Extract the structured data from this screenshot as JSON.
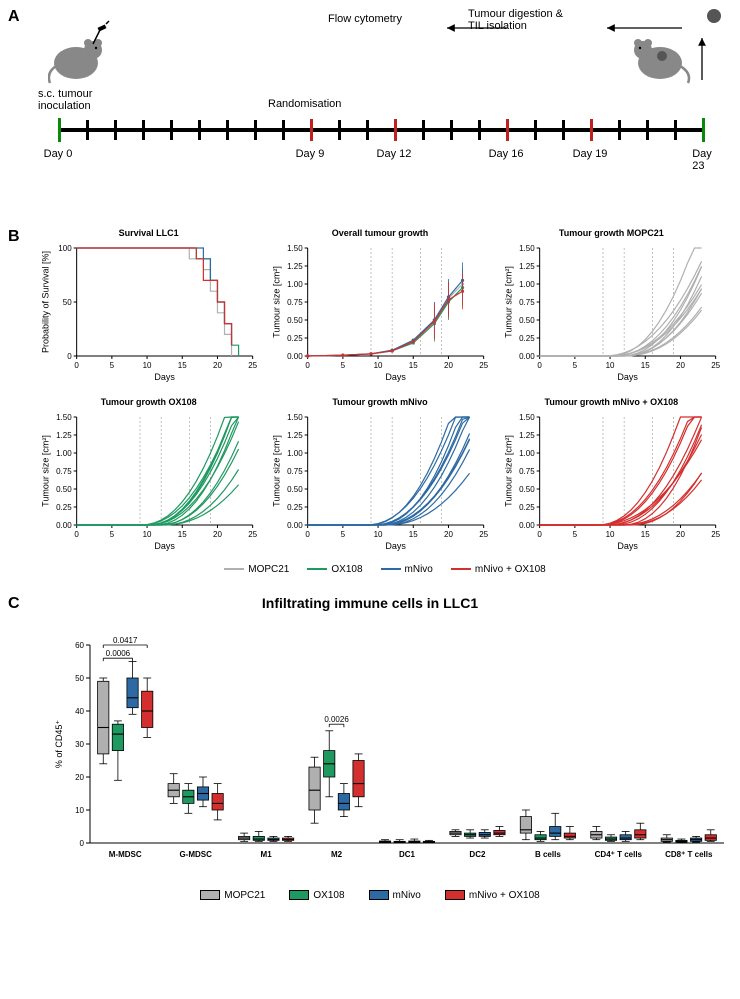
{
  "colors": {
    "mopc21": "#b0b0b0",
    "ox108": "#1e9960",
    "mnivo": "#2d6aa3",
    "mnivo_ox108": "#d32f2f",
    "black": "#000000",
    "green_tick": "#0a8a0a",
    "red_tick": "#c02020",
    "background": "#ffffff",
    "axis": "#000000"
  },
  "panel_a": {
    "label": "A",
    "inoculation_text": "s.c. tumour\ninoculation",
    "randomisation_text": "Randomisation",
    "flow_text": "Flow cytometry",
    "digestion_text": "Tumour digestion &\nTIL isolation",
    "timeline_ticks": [
      {
        "pos": 0,
        "type": "green",
        "label": "Day 0"
      },
      {
        "pos": 4.35,
        "type": "black"
      },
      {
        "pos": 8.7,
        "type": "black"
      },
      {
        "pos": 13.04,
        "type": "black"
      },
      {
        "pos": 17.39,
        "type": "black"
      },
      {
        "pos": 21.74,
        "type": "black"
      },
      {
        "pos": 26.09,
        "type": "black"
      },
      {
        "pos": 30.43,
        "type": "black"
      },
      {
        "pos": 34.78,
        "type": "black"
      },
      {
        "pos": 39.13,
        "type": "red",
        "label": "Day 9"
      },
      {
        "pos": 43.48,
        "type": "black"
      },
      {
        "pos": 47.83,
        "type": "black"
      },
      {
        "pos": 52.17,
        "type": "red",
        "label": "Day 12"
      },
      {
        "pos": 56.52,
        "type": "black"
      },
      {
        "pos": 60.87,
        "type": "black"
      },
      {
        "pos": 65.22,
        "type": "black"
      },
      {
        "pos": 69.57,
        "type": "red",
        "label": "Day 16"
      },
      {
        "pos": 73.91,
        "type": "black"
      },
      {
        "pos": 78.26,
        "type": "black"
      },
      {
        "pos": 82.61,
        "type": "red",
        "label": "Day 19"
      },
      {
        "pos": 86.96,
        "type": "black"
      },
      {
        "pos": 91.3,
        "type": "black"
      },
      {
        "pos": 95.65,
        "type": "black"
      },
      {
        "pos": 100,
        "type": "green",
        "label": "Day 23"
      }
    ]
  },
  "panel_b": {
    "label": "B",
    "x_axis": {
      "label": "Days",
      "min": 0,
      "max": 25,
      "step": 5
    },
    "survival": {
      "title": "Survival LLC1",
      "ylabel": "Probability of Survival [%]",
      "ylim": [
        0,
        100
      ],
      "ytick_step": 50,
      "series": {
        "mopc21": [
          [
            0,
            100
          ],
          [
            15,
            100
          ],
          [
            16,
            90
          ],
          [
            18,
            80
          ],
          [
            19,
            60
          ],
          [
            20,
            40
          ],
          [
            21,
            20
          ],
          [
            22,
            0
          ]
        ],
        "ox108": [
          [
            0,
            100
          ],
          [
            16,
            100
          ],
          [
            17,
            90
          ],
          [
            19,
            70
          ],
          [
            20,
            50
          ],
          [
            21,
            30
          ],
          [
            22,
            10
          ],
          [
            23,
            0
          ]
        ],
        "mnivo": [
          [
            0,
            100
          ],
          [
            16,
            100
          ],
          [
            18,
            90
          ],
          [
            19,
            70
          ],
          [
            20,
            50
          ],
          [
            21,
            30
          ],
          [
            22,
            10
          ]
        ],
        "mnivo_ox108": [
          [
            0,
            100
          ],
          [
            15,
            100
          ],
          [
            17,
            90
          ],
          [
            18,
            70
          ],
          [
            20,
            50
          ],
          [
            21,
            30
          ],
          [
            22,
            10
          ]
        ]
      }
    },
    "overall": {
      "title": "Overall tumour growth",
      "ylabel": "Tumour size [cm²]",
      "ylim": [
        0,
        1.5
      ],
      "ytick_step": 0.25,
      "vlines": [
        9,
        12,
        16,
        19
      ],
      "series": {
        "mopc21": [
          [
            0,
            0
          ],
          [
            5,
            0.01
          ],
          [
            9,
            0.03
          ],
          [
            12,
            0.08
          ],
          [
            15,
            0.2
          ],
          [
            18,
            0.5
          ],
          [
            20,
            0.8
          ],
          [
            22,
            1.0
          ]
        ],
        "ox108": [
          [
            0,
            0
          ],
          [
            5,
            0.01
          ],
          [
            9,
            0.03
          ],
          [
            12,
            0.07
          ],
          [
            15,
            0.18
          ],
          [
            18,
            0.45
          ],
          [
            20,
            0.75
          ],
          [
            22,
            0.95
          ]
        ],
        "mnivo": [
          [
            0,
            0
          ],
          [
            5,
            0.01
          ],
          [
            9,
            0.03
          ],
          [
            12,
            0.08
          ],
          [
            15,
            0.22
          ],
          [
            18,
            0.5
          ],
          [
            20,
            0.82
          ],
          [
            22,
            1.05
          ]
        ],
        "mnivo_ox108": [
          [
            0,
            0
          ],
          [
            5,
            0.01
          ],
          [
            9,
            0.03
          ],
          [
            12,
            0.07
          ],
          [
            15,
            0.2
          ],
          [
            18,
            0.48
          ],
          [
            20,
            0.78
          ],
          [
            22,
            0.9
          ]
        ]
      },
      "errorbars": {
        "x": [
          18,
          20,
          22
        ],
        "err": 0.25
      }
    },
    "individual": {
      "ylabel": "Tumour size [cm²]",
      "ylim": [
        0,
        1.5
      ],
      "ytick_step": 0.25,
      "vlines": [
        9,
        12,
        16,
        19
      ],
      "charts": [
        {
          "title": "Tumour growth MOPC21",
          "color": "mopc21",
          "n_lines": 11
        },
        {
          "title": "Tumour growth OX108",
          "color": "ox108",
          "n_lines": 11
        },
        {
          "title": "Tumour growth mNivo",
          "color": "mnivo",
          "n_lines": 11
        },
        {
          "title": "Tumour growth mNivo + OX108",
          "color": "mnivo_ox108",
          "n_lines": 11
        }
      ]
    },
    "legend": [
      {
        "key": "mopc21",
        "label": "MOPC21"
      },
      {
        "key": "ox108",
        "label": "OX108"
      },
      {
        "key": "mnivo",
        "label": "mNivo"
      },
      {
        "key": "mnivo_ox108",
        "label": "mNivo + OX108"
      }
    ]
  },
  "panel_c": {
    "label": "C",
    "title": "Infiltrating immune cells in LLC1",
    "ylabel": "% of CD45⁺",
    "ylim": [
      0,
      60
    ],
    "ytick_step": 10,
    "groups": [
      "M-MDSC",
      "G-MDSC",
      "M1",
      "M2",
      "DC1",
      "DC2",
      "B cells",
      "CD4⁺ T cells",
      "CD8⁺ T cells"
    ],
    "series": [
      "mopc21",
      "ox108",
      "mnivo",
      "mnivo_ox108"
    ],
    "data": {
      "M-MDSC": {
        "mopc21": {
          "q1": 27,
          "med": 35,
          "q3": 49,
          "lo": 24,
          "hi": 50
        },
        "ox108": {
          "q1": 28,
          "med": 33,
          "q3": 36,
          "lo": 19,
          "hi": 37
        },
        "mnivo": {
          "q1": 41,
          "med": 44,
          "q3": 50,
          "lo": 39,
          "hi": 55
        },
        "mnivo_ox108": {
          "q1": 35,
          "med": 40,
          "q3": 46,
          "lo": 32,
          "hi": 50
        }
      },
      "G-MDSC": {
        "mopc21": {
          "q1": 14,
          "med": 16,
          "q3": 18,
          "lo": 12,
          "hi": 21
        },
        "ox108": {
          "q1": 12,
          "med": 14,
          "q3": 16,
          "lo": 9,
          "hi": 18
        },
        "mnivo": {
          "q1": 13,
          "med": 15,
          "q3": 17,
          "lo": 11,
          "hi": 20
        },
        "mnivo_ox108": {
          "q1": 10,
          "med": 12,
          "q3": 15,
          "lo": 7,
          "hi": 18
        }
      },
      "M1": {
        "mopc21": {
          "q1": 1,
          "med": 1.5,
          "q3": 2,
          "lo": 0.5,
          "hi": 3
        },
        "ox108": {
          "q1": 0.8,
          "med": 1.2,
          "q3": 2,
          "lo": 0.5,
          "hi": 3.5
        },
        "mnivo": {
          "q1": 0.8,
          "med": 1,
          "q3": 1.5,
          "lo": 0.5,
          "hi": 2
        },
        "mnivo_ox108": {
          "q1": 0.8,
          "med": 1,
          "q3": 1.5,
          "lo": 0.5,
          "hi": 2
        }
      },
      "M2": {
        "mopc21": {
          "q1": 10,
          "med": 16,
          "q3": 23,
          "lo": 6,
          "hi": 26
        },
        "ox108": {
          "q1": 20,
          "med": 24,
          "q3": 28,
          "lo": 14,
          "hi": 34
        },
        "mnivo": {
          "q1": 10,
          "med": 12,
          "q3": 15,
          "lo": 8,
          "hi": 18
        },
        "mnivo_ox108": {
          "q1": 14,
          "med": 18,
          "q3": 25,
          "lo": 11,
          "hi": 27
        }
      },
      "DC1": {
        "mopc21": {
          "q1": 0.2,
          "med": 0.4,
          "q3": 0.6,
          "lo": 0.1,
          "hi": 1
        },
        "ox108": {
          "q1": 0.2,
          "med": 0.3,
          "q3": 0.5,
          "lo": 0.1,
          "hi": 1
        },
        "mnivo": {
          "q1": 0.2,
          "med": 0.4,
          "q3": 0.6,
          "lo": 0.1,
          "hi": 1.2
        },
        "mnivo_ox108": {
          "q1": 0.2,
          "med": 0.3,
          "q3": 0.5,
          "lo": 0.1,
          "hi": 0.8
        }
      },
      "DC2": {
        "mopc21": {
          "q1": 2.5,
          "med": 3,
          "q3": 3.5,
          "lo": 2,
          "hi": 4
        },
        "ox108": {
          "q1": 2,
          "med": 2.5,
          "q3": 3,
          "lo": 1.5,
          "hi": 4
        },
        "mnivo": {
          "q1": 2,
          "med": 2.5,
          "q3": 3.2,
          "lo": 1.5,
          "hi": 4
        },
        "mnivo_ox108": {
          "q1": 2.5,
          "med": 3,
          "q3": 3.8,
          "lo": 2,
          "hi": 5
        }
      },
      "B cells": {
        "mopc21": {
          "q1": 3,
          "med": 4,
          "q3": 8,
          "lo": 1,
          "hi": 10
        },
        "ox108": {
          "q1": 1,
          "med": 1.5,
          "q3": 2.5,
          "lo": 0.5,
          "hi": 3.5
        },
        "mnivo": {
          "q1": 2,
          "med": 3,
          "q3": 5,
          "lo": 1,
          "hi": 9
        },
        "mnivo_ox108": {
          "q1": 1.5,
          "med": 2,
          "q3": 3,
          "lo": 1,
          "hi": 5
        }
      },
      "CD4⁺ T cells": {
        "mopc21": {
          "q1": 1.5,
          "med": 2.5,
          "q3": 3.5,
          "lo": 1,
          "hi": 5
        },
        "ox108": {
          "q1": 0.8,
          "med": 1.2,
          "q3": 1.8,
          "lo": 0.5,
          "hi": 2.5
        },
        "mnivo": {
          "q1": 1,
          "med": 1.5,
          "q3": 2.5,
          "lo": 0.5,
          "hi": 3.5
        },
        "mnivo_ox108": {
          "q1": 1.5,
          "med": 2.5,
          "q3": 4,
          "lo": 1,
          "hi": 6
        }
      },
      "CD8⁺ T cells": {
        "mopc21": {
          "q1": 0.5,
          "med": 1,
          "q3": 1.5,
          "lo": 0.3,
          "hi": 2.5
        },
        "ox108": {
          "q1": 0.3,
          "med": 0.5,
          "q3": 0.8,
          "lo": 0.2,
          "hi": 1.2
        },
        "mnivo": {
          "q1": 0.5,
          "med": 1,
          "q3": 1.5,
          "lo": 0.3,
          "hi": 2
        },
        "mnivo_ox108": {
          "q1": 0.8,
          "med": 1.5,
          "q3": 2.5,
          "lo": 0.5,
          "hi": 4
        }
      }
    },
    "annotations": [
      {
        "group": "M-MDSC",
        "from": 0,
        "to": 2,
        "p": "0.0006",
        "y": 56
      },
      {
        "group": "M-MDSC",
        "from": 0,
        "to": 3,
        "p": "0.0417",
        "y": 60
      },
      {
        "group": "M2",
        "from": 1,
        "to": 2,
        "p": "0.0026",
        "y": 36
      }
    ],
    "legend": [
      {
        "key": "mopc21",
        "label": "MOPC21"
      },
      {
        "key": "ox108",
        "label": "OX108"
      },
      {
        "key": "mnivo",
        "label": "mNivo"
      },
      {
        "key": "mnivo_ox108",
        "label": "mNivo + OX108"
      }
    ]
  }
}
